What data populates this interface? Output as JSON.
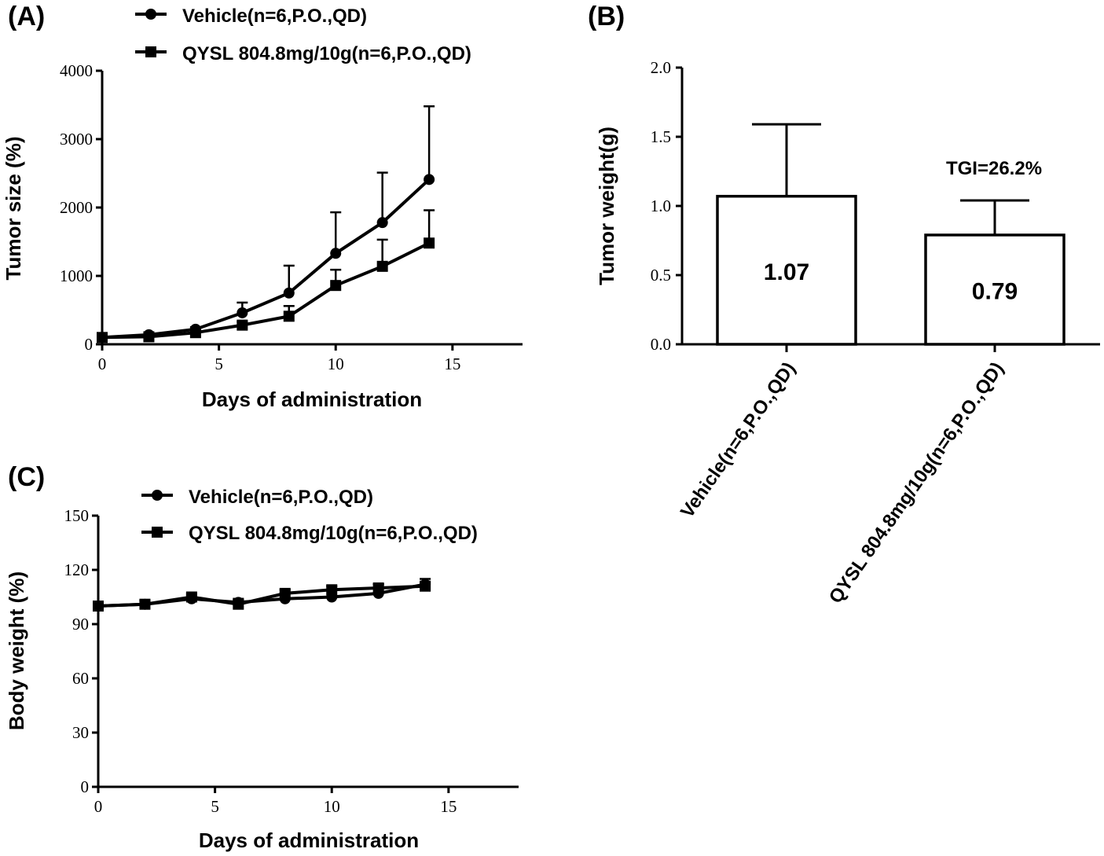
{
  "chart_data": [
    {
      "panel": "(A)",
      "type": "line",
      "xlabel": "Days of administration",
      "ylabel": "Tumor size (%)",
      "xlim": [
        0,
        18
      ],
      "ylim": [
        0,
        4000
      ],
      "xticks": [
        "0",
        "5",
        "10",
        "15"
      ],
      "yticks": [
        "0",
        "1000",
        "2000",
        "3000",
        "4000"
      ],
      "legend": [
        "Vehicle(n=6,P.O.,QD)",
        "QYSL 804.8mg/10g(n=6,P.O.,QD)"
      ],
      "series": [
        {
          "name": "Vehicle(n=6,P.O.,QD)",
          "marker": "circle",
          "x": [
            0,
            2,
            4,
            6,
            8,
            10,
            12,
            14
          ],
          "y": [
            100,
            140,
            220,
            460,
            750,
            1330,
            1780,
            2410
          ],
          "err": [
            10,
            20,
            30,
            150,
            400,
            600,
            730,
            1070
          ]
        },
        {
          "name": "QYSL 804.8mg/10g(n=6,P.O.,QD)",
          "marker": "square",
          "x": [
            0,
            2,
            4,
            6,
            8,
            10,
            12,
            14
          ],
          "y": [
            100,
            110,
            170,
            280,
            410,
            860,
            1140,
            1480
          ],
          "err": [
            10,
            20,
            30,
            50,
            150,
            230,
            390,
            480
          ]
        }
      ]
    },
    {
      "panel": "(B)",
      "type": "bar",
      "ylabel": "Tumor weight(g)",
      "ylim": [
        0,
        2.0
      ],
      "yticks": [
        "0.0",
        "0.5",
        "1.0",
        "1.5",
        "2.0"
      ],
      "categories": [
        "Vehicle(n=6,P.O.,QD)",
        "QYSL 804.8mg/10g(n=6,P.O.,QD)"
      ],
      "values": [
        1.07,
        0.79
      ],
      "value_labels": [
        "1.07",
        "0.79"
      ],
      "err": [
        0.52,
        0.25
      ],
      "annotation": "TGI=26.2%"
    },
    {
      "panel": "(C)",
      "type": "line",
      "xlabel": "Days of administration",
      "ylabel": "Body weight (%)",
      "xlim": [
        0,
        18
      ],
      "ylim": [
        0,
        150
      ],
      "xticks": [
        "0",
        "5",
        "10",
        "15"
      ],
      "yticks": [
        "0",
        "30",
        "60",
        "90",
        "120",
        "150"
      ],
      "legend": [
        "Vehicle(n=6,P.O.,QD)",
        "QYSL 804.8mg/10g(n=6,P.O.,QD)"
      ],
      "series": [
        {
          "name": "Vehicle(n=6,P.O.,QD)",
          "marker": "circle",
          "x": [
            0,
            2,
            4,
            6,
            8,
            10,
            12,
            14
          ],
          "y": [
            100,
            101,
            104,
            102,
            104,
            105,
            107,
            112
          ],
          "err": [
            1,
            2,
            2,
            2,
            3,
            4,
            5,
            3
          ]
        },
        {
          "name": "QYSL 804.8mg/10g(n=6,P.O.,QD)",
          "marker": "square",
          "x": [
            0,
            2,
            4,
            6,
            8,
            10,
            12,
            14
          ],
          "y": [
            100,
            101,
            105,
            101,
            107,
            109,
            110,
            111
          ],
          "err": [
            1,
            2,
            2,
            2,
            2,
            2,
            2,
            2
          ]
        }
      ]
    }
  ]
}
